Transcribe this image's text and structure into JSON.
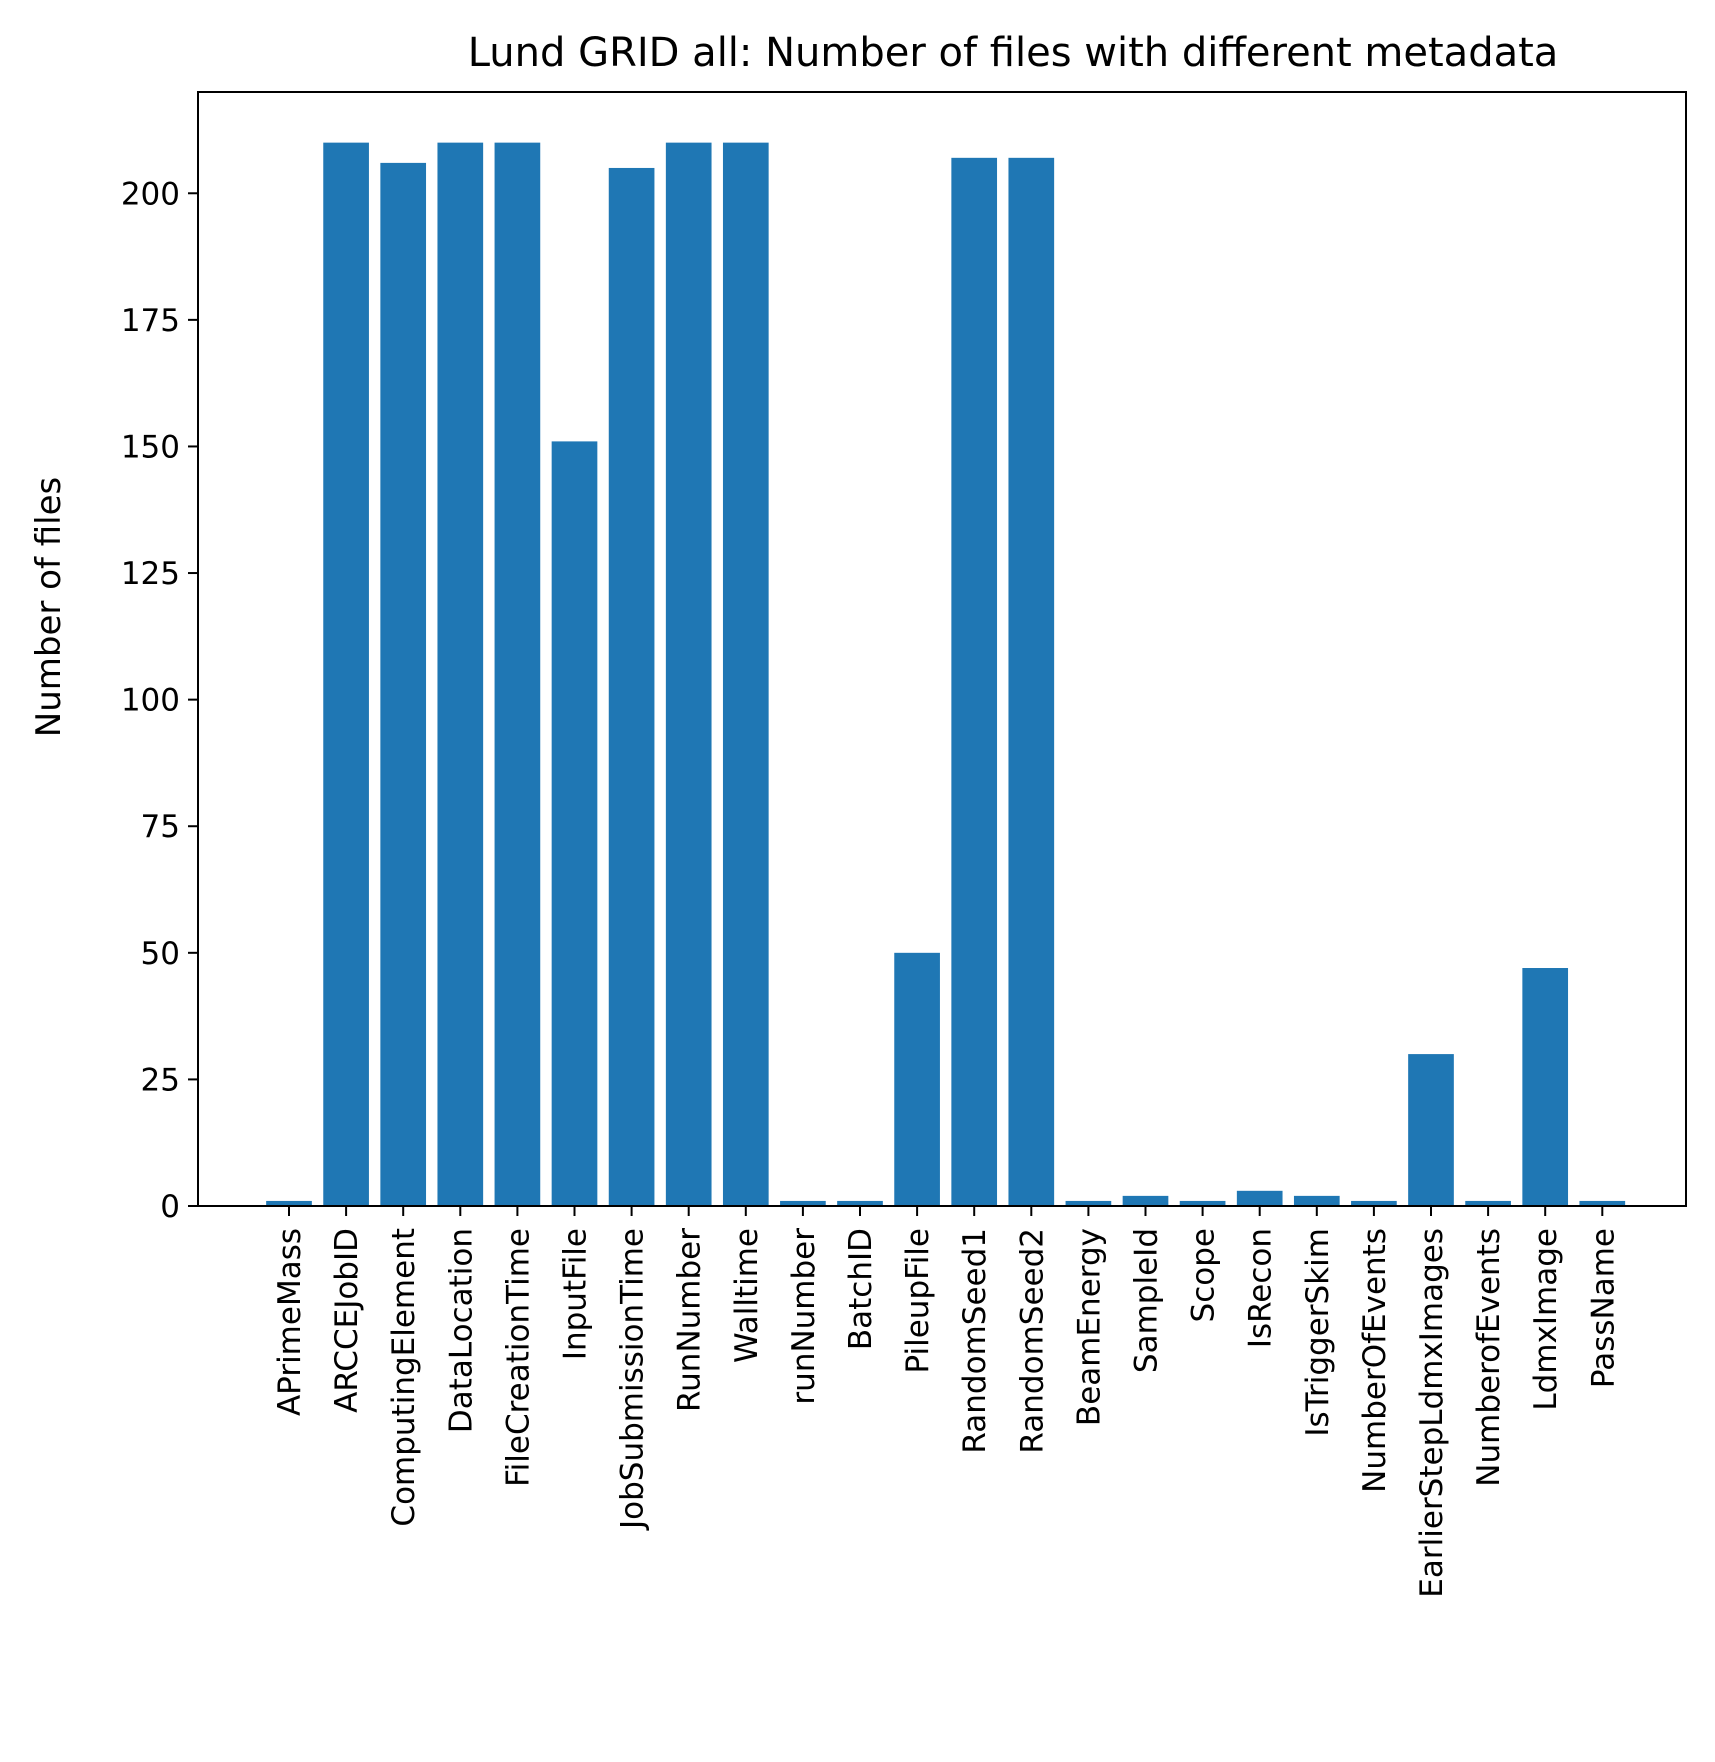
{
  "chart_data": {
    "type": "bar",
    "title": "Lund GRID all: Number of files with different metadata",
    "xlabel": "",
    "ylabel": "Number of files",
    "ylim": [
      0,
      220
    ],
    "yticks": [
      0,
      25,
      50,
      75,
      100,
      125,
      150,
      175,
      200
    ],
    "bar_color": "#1f77b4",
    "grid": false,
    "legend": "none",
    "categories": [
      "APrimeMass",
      "ARCCEJobID",
      "ComputingElement",
      "DataLocation",
      "FileCreationTime",
      "InputFile",
      "JobSubmissionTime",
      "RunNumber",
      "Walltime",
      "runNumber",
      "BatchID",
      "PileupFile",
      "RandomSeed1",
      "RandomSeed2",
      "BeamEnergy",
      "SampleId",
      "Scope",
      "IsRecon",
      "IsTriggerSkim",
      "NumberOfEvents",
      "EarlierStepLdmxImages",
      "NumberofEvents",
      "LdmxImage",
      "PassName"
    ],
    "values": [
      1,
      210,
      206,
      210,
      210,
      151,
      205,
      210,
      210,
      1,
      1,
      50,
      207,
      207,
      1,
      2,
      1,
      3,
      2,
      1,
      30,
      1,
      47,
      1
    ]
  }
}
